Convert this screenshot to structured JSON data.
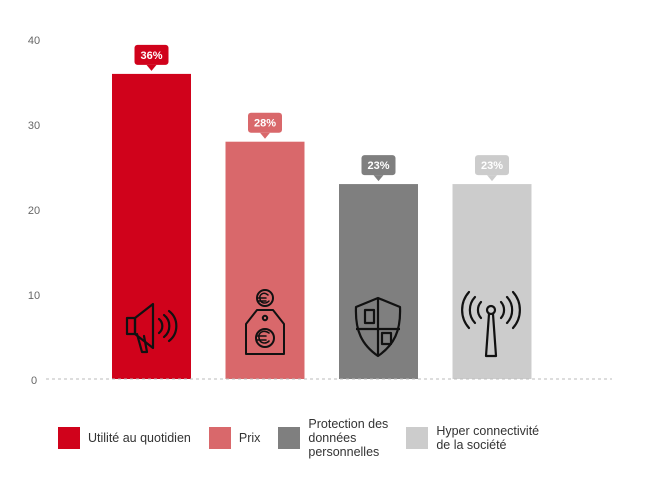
{
  "chart_data": {
    "type": "bar",
    "categories": [
      "Utilité au quotidien",
      "Prix",
      "Protection des données personnelles",
      "Hyper connectivité de la société"
    ],
    "values": [
      36,
      28,
      23,
      23
    ],
    "data_labels": [
      "36%",
      "28%",
      "23%",
      "23%"
    ],
    "colors": [
      "#d0021b",
      "#d9686b",
      "#7f7f7f",
      "#cccccc"
    ],
    "icons": [
      "megaphone-icon",
      "price-tag-euro-icon",
      "shield-icon",
      "antenna-icon"
    ],
    "ylim": [
      0,
      40
    ],
    "yticks": [
      "0",
      "10",
      "20",
      "30",
      "40"
    ],
    "grid": false,
    "baseline_style": "dashed",
    "legend_position": "bottom"
  },
  "legend": [
    {
      "label": "Utilité au quotidien",
      "color": "#d0021b"
    },
    {
      "label": "Prix",
      "color": "#d9686b"
    },
    {
      "label": "Protection des\ndonnées\npersonnelles",
      "color": "#7f7f7f"
    },
    {
      "label": "Hyper connectivité\nde la société",
      "color": "#cccccc"
    }
  ]
}
